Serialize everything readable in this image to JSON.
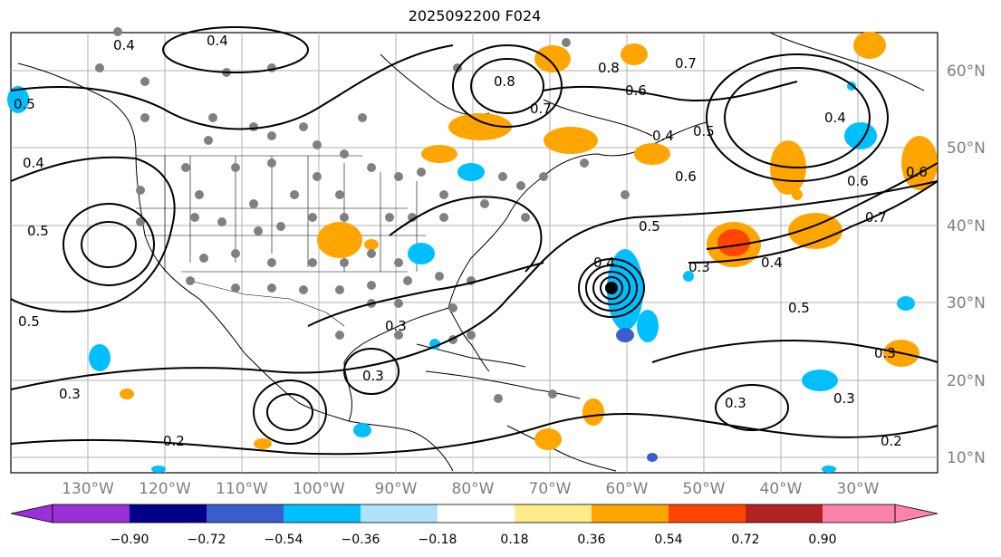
{
  "title": "2025092200 F024",
  "latitude_labels": [
    "60°N",
    "50°N",
    "40°N",
    "30°N",
    "20°N",
    "10°N"
  ],
  "longitude_labels": [
    "130°W",
    "120°W",
    "110°W",
    "100°W",
    "90°W",
    "80°W",
    "70°W",
    "60°W",
    "50°W",
    "40°W",
    "30°W"
  ],
  "colorbar": {
    "ticks": [
      "−0.90",
      "−0.72",
      "−0.54",
      "−0.36",
      "−0.18",
      "0.18",
      "0.36",
      "0.54",
      "0.72",
      "0.90"
    ],
    "colors": [
      "#9b30d6",
      "#00008b",
      "#3a5fcd",
      "#00bfff",
      "#b0e2ff",
      "#ffffff",
      "#ffec8b",
      "#ffa500",
      "#ff4500",
      "#b22222",
      "#ff82ab"
    ]
  },
  "contour_labels": [
    "0.4",
    "0.4",
    "0.8",
    "0.6",
    "0.5",
    "0.7",
    "0.8",
    "0.6",
    "0.5",
    "0.4",
    "0.5",
    "0.6",
    "0.7",
    "0.5",
    "0.4",
    "0.3",
    "0.5",
    "0.4",
    "0.3",
    "0.3",
    "0.3",
    "0.3",
    "0.2",
    "0.2",
    "0.3",
    "0.4",
    "0.5",
    "0.6",
    "0.7",
    "0.4",
    "0.3"
  ],
  "colors": {
    "land_fill": "#ffffff",
    "grid": "#b0b0b0",
    "axis_label": "#7f7f7f",
    "station_dot": "#808080"
  }
}
